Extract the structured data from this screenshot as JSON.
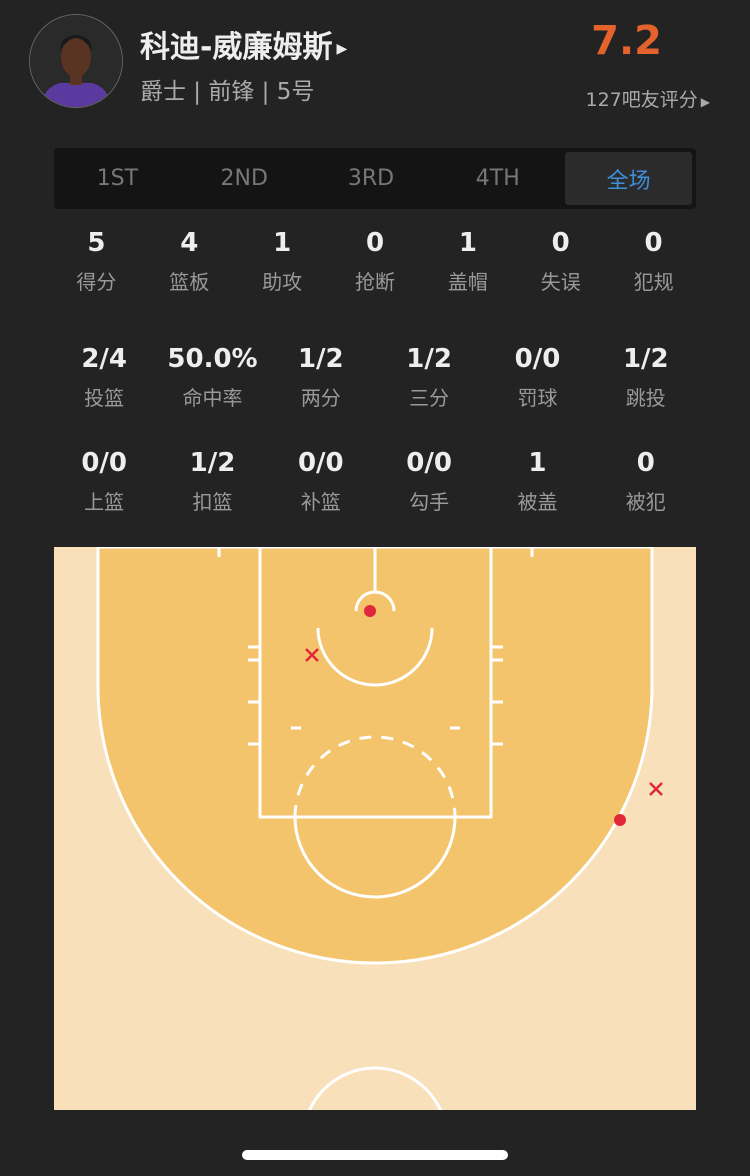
{
  "player": {
    "name": "科迪-威廉姆斯",
    "info": "爵士 | 前锋 | 5号",
    "rating": "7.2",
    "raters": "127吧友评分"
  },
  "tabs": [
    {
      "label": "1ST"
    },
    {
      "label": "2ND"
    },
    {
      "label": "3RD"
    },
    {
      "label": "4TH"
    },
    {
      "label": "全场",
      "active": true
    }
  ],
  "stats_row1": [
    {
      "v": "5",
      "l": "得分"
    },
    {
      "v": "4",
      "l": "篮板"
    },
    {
      "v": "1",
      "l": "助攻"
    },
    {
      "v": "0",
      "l": "抢断"
    },
    {
      "v": "1",
      "l": "盖帽"
    },
    {
      "v": "0",
      "l": "失误"
    },
    {
      "v": "0",
      "l": "犯规"
    }
  ],
  "stats_row2": [
    {
      "v": "2/4",
      "l": "投篮"
    },
    {
      "v": "50.0%",
      "l": "命中率"
    },
    {
      "v": "1/2",
      "l": "两分"
    },
    {
      "v": "1/2",
      "l": "三分"
    },
    {
      "v": "0/0",
      "l": "罚球"
    },
    {
      "v": "1/2",
      "l": "跳投"
    }
  ],
  "stats_row3": [
    {
      "v": "0/0",
      "l": "上篮"
    },
    {
      "v": "1/2",
      "l": "扣篮"
    },
    {
      "v": "0/0",
      "l": "补篮"
    },
    {
      "v": "0/0",
      "l": "勾手"
    },
    {
      "v": "1",
      "l": "被盖"
    },
    {
      "v": "0",
      "l": "被犯"
    }
  ],
  "shots": [
    {
      "result": "made",
      "zone": "restricted area"
    },
    {
      "result": "missed",
      "zone": "paint"
    },
    {
      "result": "made",
      "zone": "right wing three"
    },
    {
      "result": "missed",
      "zone": "right wing three"
    }
  ],
  "colors": {
    "accent": "#3d8fd9",
    "rating": "#e4622b",
    "made": "#e0283a",
    "court_inner": "#f4c46c",
    "court_outer": "#f8e0bb"
  }
}
